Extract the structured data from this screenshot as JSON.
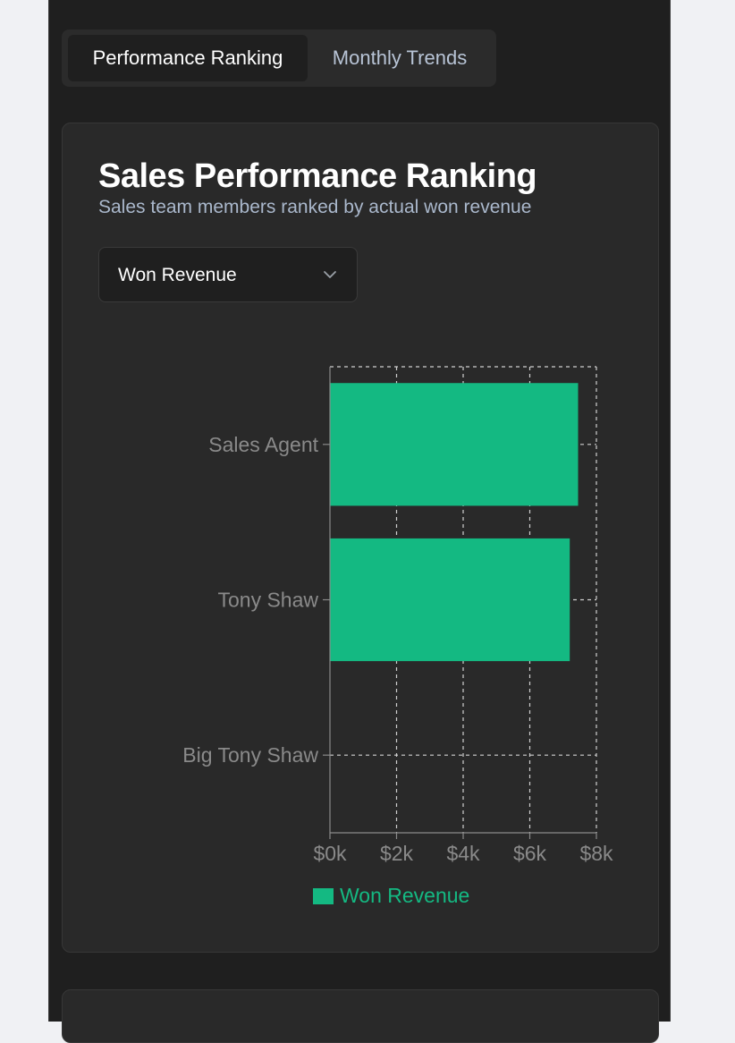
{
  "tabs": [
    {
      "label": "Performance Ranking",
      "active": true
    },
    {
      "label": "Monthly Trends",
      "active": false
    }
  ],
  "card": {
    "title": "Sales Performance Ranking",
    "subtitle": "Sales team members ranked by actual won revenue"
  },
  "metric_select": {
    "value": "Won Revenue",
    "icon": "chevron-down-icon"
  },
  "colors": {
    "bar": "#14b982",
    "legend_text": "#14b982",
    "axis_text": "#8a8a8a",
    "grid": "#d0d0d0"
  },
  "chart_data": {
    "type": "bar",
    "orientation": "horizontal",
    "categories": [
      "Sales Agent",
      "Tony Shaw",
      "Big Tony Shaw"
    ],
    "series": [
      {
        "name": "Won Revenue",
        "values": [
          7450,
          7200,
          0
        ]
      }
    ],
    "xlim": [
      0,
      8000
    ],
    "xticks": [
      0,
      2000,
      4000,
      6000,
      8000
    ],
    "xtick_labels": [
      "$0k",
      "$2k",
      "$4k",
      "$6k",
      "$8k"
    ],
    "grid": true,
    "legend_position": "bottom"
  }
}
